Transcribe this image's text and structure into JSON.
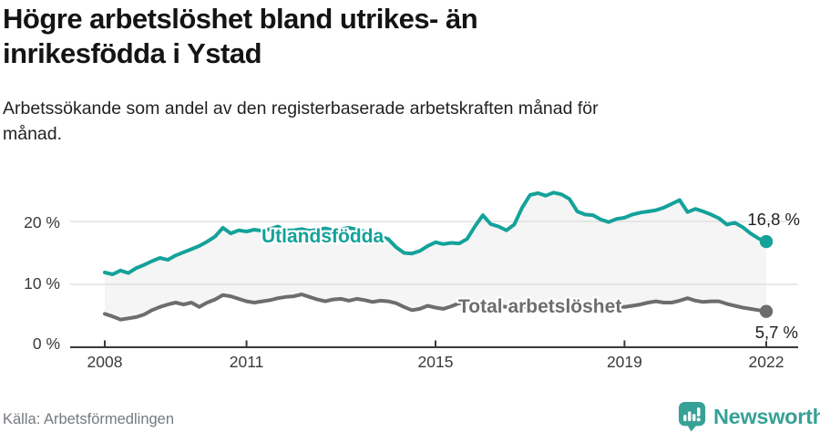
{
  "header": {
    "title": "Högre arbetslöshet bland utrikes- än inrikesfödda i Ystad",
    "subtitle": "Arbetssökande som andel av den registerbaserade arbetskraften månad för månad."
  },
  "footer": {
    "source": "Källa: Arbetsförmedlingen",
    "brand_name": "Newsworthy",
    "brand_color": "#38a197",
    "brand_icon": "bar-chart-speech-bubble-icon"
  },
  "chart_data": {
    "type": "line",
    "title": "Högre arbetslöshet bland utrikes- än inrikesfödda i Ystad",
    "subtitle": "Arbetssökande som andel av den registerbaserade arbetskraften månad för månad.",
    "unit": "%",
    "xlim": [
      2008,
      2022
    ],
    "ylim": [
      0,
      26
    ],
    "x_start": 2008,
    "x_step_years": 0.1666667,
    "x_ticks": [
      2008,
      2011,
      2015,
      2019,
      2022
    ],
    "x_tick_labels": [
      "2008",
      "2011",
      "2015",
      "2019",
      "2022"
    ],
    "y_ticks": [
      0,
      10,
      20
    ],
    "y_tick_labels": [
      "0 %",
      "10 %",
      "20 %"
    ],
    "grid": "horizontal",
    "grid_color": "#dcdcdc",
    "axis_color": "#3a3a3a",
    "fill_between_color": "#f5f5f5",
    "legend_position": "inline-labels",
    "series": [
      {
        "name": "Utlandsfödda",
        "color": "#14a29a",
        "end_label": "16,8 %",
        "end_value": 16.8,
        "values": [
          11.9,
          11.6,
          12.2,
          11.8,
          12.6,
          13.1,
          13.7,
          14.2,
          13.9,
          14.6,
          15.1,
          15.6,
          16.1,
          16.8,
          17.6,
          19.0,
          18.1,
          18.6,
          18.4,
          18.7,
          18.5,
          18.8,
          19.2,
          18.6,
          18.6,
          18.8,
          18.5,
          18.7,
          18.9,
          18.6,
          18.8,
          19.0,
          18.7,
          18.4,
          18.0,
          17.6,
          17.2,
          15.9,
          15.0,
          14.9,
          15.3,
          16.1,
          16.7,
          16.4,
          16.6,
          16.5,
          17.2,
          19.2,
          21.0,
          19.6,
          19.2,
          18.6,
          19.5,
          22.2,
          24.2,
          24.5,
          24.1,
          24.6,
          24.3,
          23.6,
          21.6,
          21.1,
          21.0,
          20.3,
          19.9,
          20.4,
          20.6,
          21.1,
          21.4,
          21.6,
          21.8,
          22.2,
          22.8,
          23.4,
          21.5,
          22.0,
          21.6,
          21.1,
          20.5,
          19.5,
          19.8,
          19.1,
          18.1,
          17.3,
          16.8
        ]
      },
      {
        "name": "Total arbetslöshet",
        "color": "#6d6d70",
        "end_label": "5,7 %",
        "end_value": 5.7,
        "values": [
          5.3,
          4.9,
          4.4,
          4.6,
          4.8,
          5.2,
          5.9,
          6.4,
          6.8,
          7.1,
          6.8,
          7.1,
          6.4,
          7.1,
          7.6,
          8.3,
          8.1,
          7.7,
          7.3,
          7.1,
          7.3,
          7.5,
          7.8,
          8.0,
          8.1,
          8.4,
          8.0,
          7.6,
          7.3,
          7.6,
          7.7,
          7.4,
          7.7,
          7.5,
          7.2,
          7.4,
          7.3,
          7.0,
          6.4,
          5.9,
          6.1,
          6.6,
          6.3,
          6.1,
          6.5,
          7.0,
          6.8,
          6.6,
          6.7,
          6.9,
          6.6,
          6.4,
          6.6,
          6.5,
          6.3,
          6.4,
          6.2,
          6.4,
          6.5,
          6.4,
          6.3,
          6.5,
          6.4,
          6.2,
          6.4,
          6.5,
          6.4,
          6.6,
          6.8,
          7.1,
          7.3,
          7.1,
          7.1,
          7.4,
          7.8,
          7.4,
          7.2,
          7.3,
          7.3,
          6.9,
          6.6,
          6.3,
          6.1,
          5.9,
          5.7
        ]
      }
    ]
  }
}
